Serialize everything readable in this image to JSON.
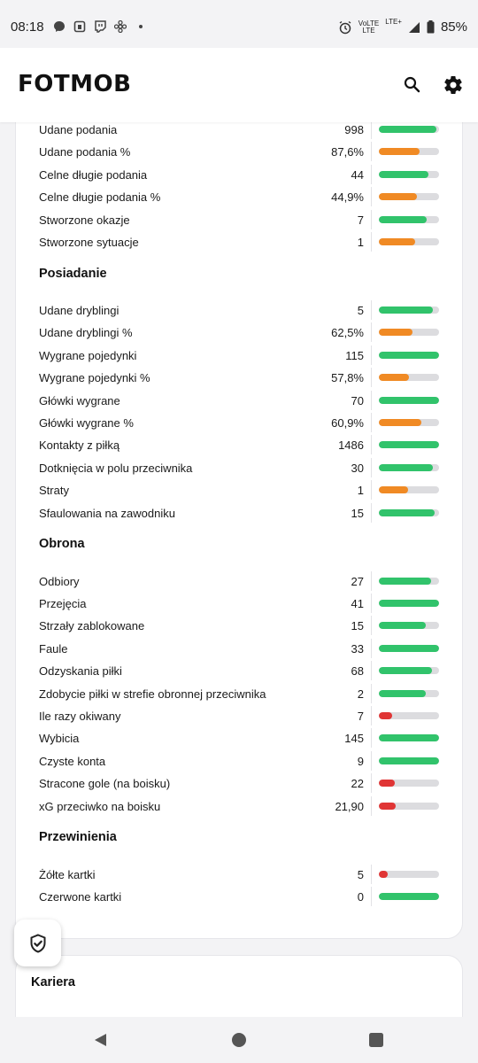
{
  "status_bar": {
    "time": "08:18",
    "net_top": "VoLTE",
    "net_bottom": "LTE",
    "lte_plus": "LTE+",
    "battery": "85%",
    "left_icons": [
      "messenger-icon",
      "bag-icon",
      "twitch-icon",
      "pinwheel-icon",
      "dot-icon"
    ]
  },
  "header": {
    "logo_text": "FOTMOB",
    "search_icon": "search-icon",
    "settings_icon": "gear-icon"
  },
  "colors": {
    "green": "#31c36b",
    "orange": "#f08a24",
    "red": "#e03535",
    "track": "#dcdcdf"
  },
  "sections": [
    {
      "title": "",
      "rows": [
        {
          "label": "Udane podania",
          "value": "998",
          "fill": 0.96,
          "color": "green"
        },
        {
          "label": "Udane podania %",
          "value": "87,6%",
          "fill": 0.68,
          "color": "orange"
        },
        {
          "label": "Celne długie podania",
          "value": "44",
          "fill": 0.83,
          "color": "green"
        },
        {
          "label": "Celne długie podania %",
          "value": "44,9%",
          "fill": 0.63,
          "color": "orange"
        },
        {
          "label": "Stworzone okazje",
          "value": "7",
          "fill": 0.8,
          "color": "green"
        },
        {
          "label": "Stworzone sytuacje",
          "value": "1",
          "fill": 0.6,
          "color": "orange"
        }
      ]
    },
    {
      "title": "Posiadanie",
      "rows": [
        {
          "label": "Udane dryblingi",
          "value": "5",
          "fill": 0.9,
          "color": "green"
        },
        {
          "label": "Udane dryblingi %",
          "value": "62,5%",
          "fill": 0.56,
          "color": "orange"
        },
        {
          "label": "Wygrane pojedynki",
          "value": "115",
          "fill": 1.0,
          "color": "green"
        },
        {
          "label": "Wygrane pojedynki %",
          "value": "57,8%",
          "fill": 0.5,
          "color": "orange"
        },
        {
          "label": "Główki wygrane",
          "value": "70",
          "fill": 1.0,
          "color": "green"
        },
        {
          "label": "Główki wygrane %",
          "value": "60,9%",
          "fill": 0.7,
          "color": "orange"
        },
        {
          "label": "Kontakty z piłką",
          "value": "1486",
          "fill": 1.0,
          "color": "green"
        },
        {
          "label": "Dotknięcia w polu przeciwnika",
          "value": "30",
          "fill": 0.9,
          "color": "green"
        },
        {
          "label": "Straty",
          "value": "1",
          "fill": 0.48,
          "color": "orange"
        },
        {
          "label": "Sfaulowania na zawodniku",
          "value": "15",
          "fill": 0.92,
          "color": "green"
        }
      ]
    },
    {
      "title": "Obrona",
      "rows": [
        {
          "label": "Odbiory",
          "value": "27",
          "fill": 0.87,
          "color": "green"
        },
        {
          "label": "Przejęcia",
          "value": "41",
          "fill": 1.0,
          "color": "green"
        },
        {
          "label": "Strzały zablokowane",
          "value": "15",
          "fill": 0.78,
          "color": "green"
        },
        {
          "label": "Faule",
          "value": "33",
          "fill": 1.0,
          "color": "green"
        },
        {
          "label": "Odzyskania piłki",
          "value": "68",
          "fill": 0.88,
          "color": "green"
        },
        {
          "label": "Zdobycie piłki w strefie obronnej przeciwnika",
          "value": "2",
          "fill": 0.78,
          "color": "green"
        },
        {
          "label": "Ile razy okiwany",
          "value": "7",
          "fill": 0.22,
          "color": "red"
        },
        {
          "label": "Wybicia",
          "value": "145",
          "fill": 1.0,
          "color": "green"
        },
        {
          "label": "Czyste konta",
          "value": "9",
          "fill": 1.0,
          "color": "green"
        },
        {
          "label": "Stracone gole (na boisku)",
          "value": "22",
          "fill": 0.27,
          "color": "red"
        },
        {
          "label": "xG przeciwko na boisku",
          "value": "21,90",
          "fill": 0.28,
          "color": "red"
        }
      ]
    },
    {
      "title": "Przewinienia",
      "rows": [
        {
          "label": "Żółte kartki",
          "value": "5",
          "fill": 0.15,
          "color": "red"
        },
        {
          "label": "Czerwone kartki",
          "value": "0",
          "fill": 1.0,
          "color": "green"
        }
      ]
    }
  ],
  "career": {
    "title": "Kariera"
  },
  "shield_icon": "shield-check-icon",
  "nav": [
    "back-icon",
    "home-icon",
    "recents-icon"
  ]
}
